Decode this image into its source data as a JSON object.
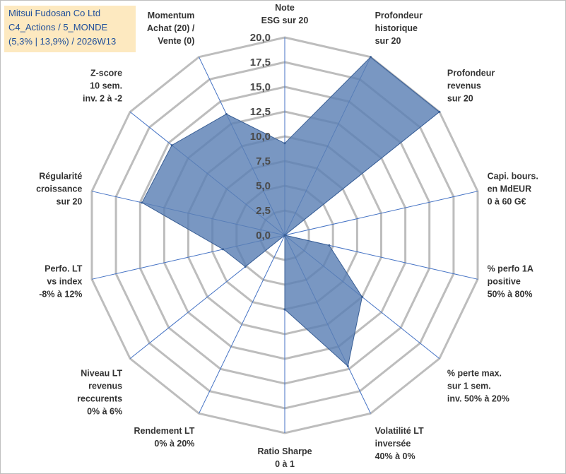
{
  "title": {
    "line1": "Mitsui Fudosan Co Ltd",
    "line2": "C4_Actions / 5_MONDE",
    "line3": "(5,3% | 13,9%) / 2026W13"
  },
  "chart_data": {
    "type": "radar",
    "r_min": 0,
    "r_max": 20,
    "ticks": [
      "0,0",
      "2,5",
      "5,0",
      "7,5",
      "10,0",
      "12,5",
      "15,0",
      "17,5",
      "20,0"
    ],
    "axes": [
      [
        "Note",
        "ESG sur 20"
      ],
      [
        "Profondeur",
        "historique",
        "sur 20"
      ],
      [
        "Profondeur",
        "revenus",
        "sur 20"
      ],
      [
        "Capi. bours.",
        "en MdEUR",
        "0 à 60 G€"
      ],
      [
        "% perfo 1A",
        "positive",
        "50% à 80%"
      ],
      [
        "% perte max.",
        "sur 1 sem.",
        "inv. 50% à 20%"
      ],
      [
        "Volatilité LT",
        "inversée",
        "40% à 0%"
      ],
      [
        "Ratio Sharpe",
        "0 à 1"
      ],
      [
        "Rendement LT",
        "0% à 20%"
      ],
      [
        "Niveau LT",
        "revenus",
        "reccurents",
        "0% à 6%"
      ],
      [
        "Perfo. LT",
        "vs index",
        "-8% à 12%"
      ],
      [
        "Régularité",
        "croissance",
        "sur 20"
      ],
      [
        "Z-score",
        "10 sem.",
        "inv. 2 à -2"
      ],
      [
        "Momentum",
        "Achat (20) /",
        "Vente (0)"
      ]
    ],
    "values": [
      9.3,
      20.0,
      20.0,
      0.0,
      4.6,
      10.0,
      14.7,
      7.5,
      0.0,
      5.1,
      6.4,
      14.8,
      14.6,
      13.6
    ],
    "series_name": "Mitsui Fudosan Co Ltd",
    "fill_color": "#5b80b4",
    "fill_opacity": 0.82,
    "stroke_color": "#3a5f95",
    "grid_color": "#bdbdbd",
    "spoke_color": "#4472c4"
  }
}
